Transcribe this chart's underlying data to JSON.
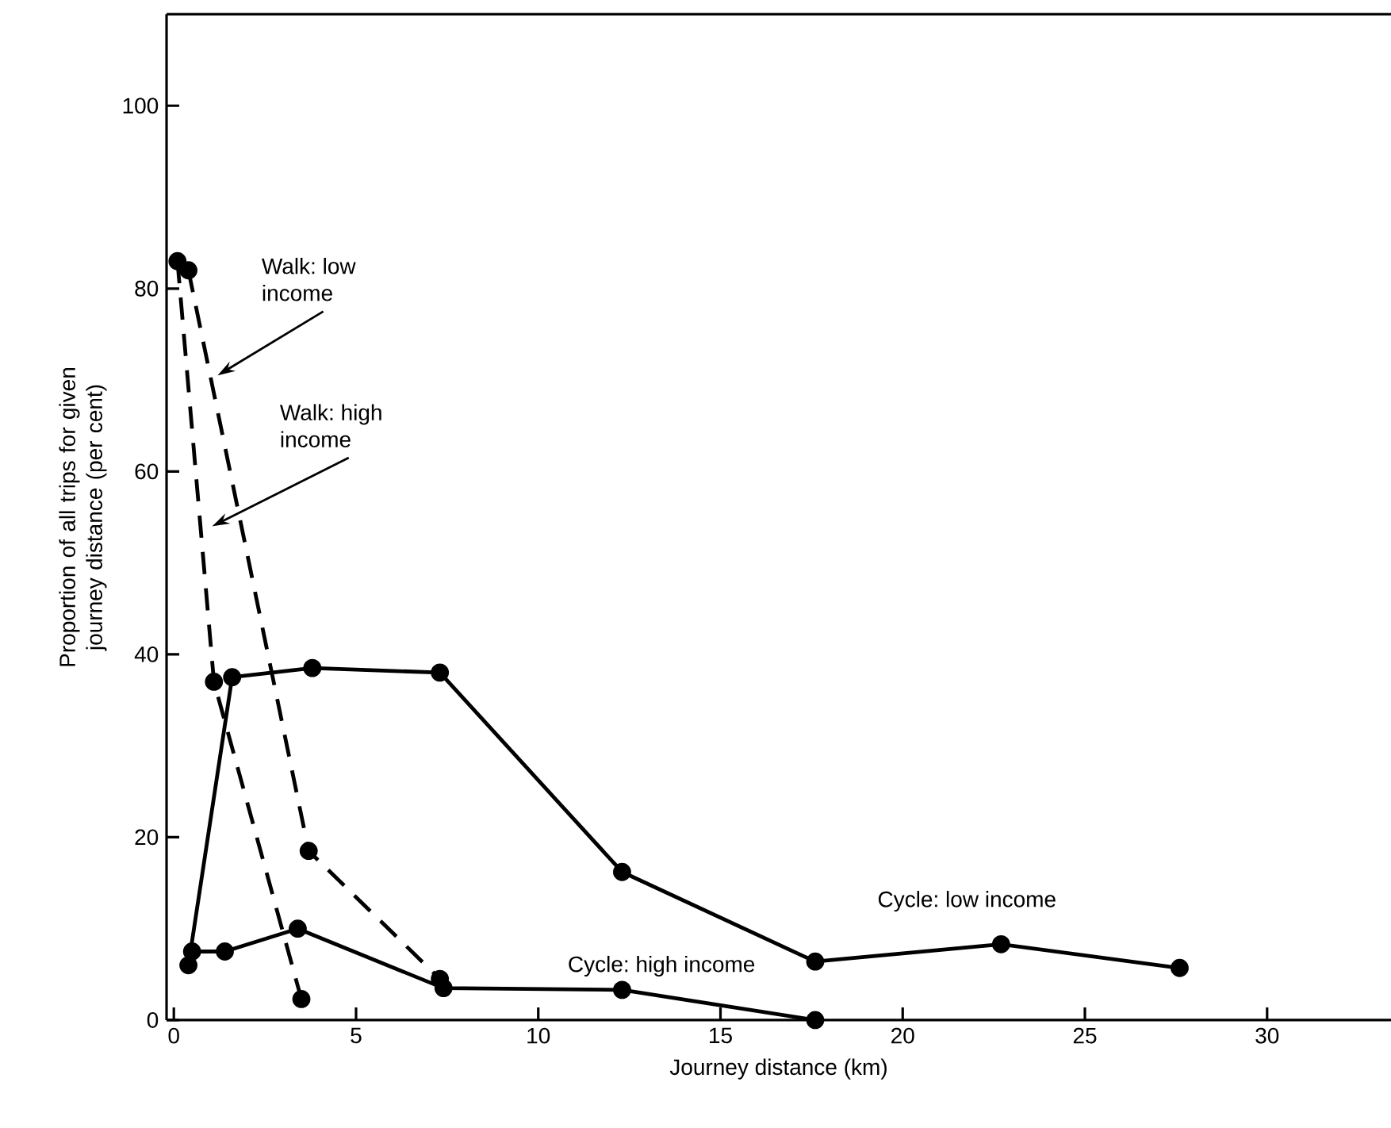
{
  "chart_data": {
    "type": "line",
    "xlabel": "Journey distance (km)",
    "ylabel": "Proportion of all trips for given journey distance (per cent)",
    "xlim": [
      -0.2,
      33.4
    ],
    "ylim": [
      0,
      110
    ],
    "xticks": [
      0,
      5,
      10,
      15,
      20,
      25,
      30
    ],
    "yticks": [
      0,
      20,
      40,
      60,
      80,
      100
    ],
    "marker": "circle",
    "grid": false,
    "legend": false,
    "series": [
      {
        "name": "Walk: low income",
        "color": "#000000",
        "line_style": "dashed",
        "x": [
          0.4,
          3.7,
          7.3
        ],
        "values": [
          82,
          18.5,
          4.5
        ]
      },
      {
        "name": "Walk: high income",
        "color": "#000000",
        "line_style": "dashed",
        "x": [
          0.1,
          1.1,
          3.5
        ],
        "values": [
          83,
          37,
          2.3
        ]
      },
      {
        "name": "Cycle: low income",
        "color": "#000000",
        "line_style": "solid",
        "x": [
          0.4,
          1.6,
          3.8,
          7.3,
          12.3,
          17.6,
          22.7,
          27.6
        ],
        "values": [
          6,
          37.5,
          38.5,
          38,
          16.2,
          6.4,
          8.3,
          5.7
        ]
      },
      {
        "name": "Cycle: high income",
        "color": "#000000",
        "line_style": "solid",
        "x": [
          0.5,
          1.4,
          3.4,
          7.4,
          12.3,
          17.6
        ],
        "values": [
          7.5,
          7.5,
          10,
          3.5,
          3.3,
          0
        ]
      }
    ]
  }
}
